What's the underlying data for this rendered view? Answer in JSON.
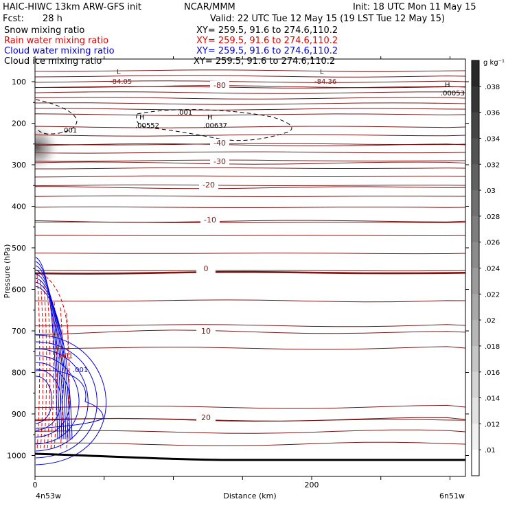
{
  "header": {
    "title": "HAIC-HIWC 13km ARW-GFS init",
    "org": "NCAR/MMM",
    "init": "Init: 18 UTC Mon 11 May 15",
    "fcst_label": "Fcst:",
    "fcst_value": "28 h",
    "valid": "Valid: 22 UTC Tue 12 May 15 (19 LST Tue 12 May 15)"
  },
  "legend": [
    {
      "name": "Snow mixing ratio",
      "xy": "XY= 259.5, 91.6 to 274.6,110.2",
      "color": "#000000"
    },
    {
      "name": "Rain water mixing ratio",
      "xy": "XY= 259.5, 91.6 to 274.6,110.2",
      "color": "#e00000"
    },
    {
      "name": "Cloud water mixing ratio",
      "xy": "XY= 259.5, 91.6 to 274.6,110.2",
      "color": "#0000dd"
    },
    {
      "name": "Cloud ice mixing ratio",
      "xy": "XY= 259.5, 91.6 to 274.6,110.2",
      "color": "#000000"
    }
  ],
  "colorbar": {
    "unit": "g kg⁻¹",
    "labels": [
      ".038",
      ".036",
      ".034",
      ".032",
      ".03",
      ".028",
      ".026",
      ".024",
      ".022",
      ".02",
      ".018",
      ".016",
      ".014",
      ".012",
      ".01"
    ]
  },
  "chart_data": {
    "type": "contour",
    "ylabel": "Pressure (hPa)",
    "xlabel": "Distance (km)",
    "x_start_label": "4n53w",
    "x_end_label": "6n51w",
    "xlim": [
      0,
      312
    ],
    "ylim": [
      1050,
      50
    ],
    "xticks": [
      {
        "value": 0,
        "label": "0"
      },
      {
        "value": 200,
        "label": "200"
      }
    ],
    "yticks": [
      100,
      200,
      300,
      400,
      500,
      600,
      700,
      800,
      900,
      1000
    ],
    "temperature_contours": [
      {
        "label": "-80",
        "p": 112
      },
      {
        "label": "-40",
        "p": 252
      },
      {
        "label": "-30",
        "p": 296
      },
      {
        "label": "-20",
        "p": 355
      },
      {
        "label": "-10",
        "p": 436
      },
      {
        "label": "0",
        "p": 560
      },
      {
        "label": "10",
        "p": 703
      },
      {
        "label": "20",
        "p": 915
      }
    ],
    "extrema": [
      {
        "type": "L",
        "value": "-84.05"
      },
      {
        "type": "L",
        "value": "-84.36"
      },
      {
        "type": "H",
        "value": ".00053"
      },
      {
        "type": "H",
        "value": ".00552"
      },
      {
        "type": "H",
        "value": ".00637"
      }
    ],
    "contour_labels": [
      {
        "series": "Cloud ice mixing ratio",
        "label": ".001"
      },
      {
        "series": "Cloud ice mixing ratio",
        "label": ".001"
      },
      {
        "series": "Rain water mixing ratio",
        "label": ".001"
      },
      {
        "series": "Cloud water mixing ratio",
        "label": ".001"
      }
    ]
  }
}
